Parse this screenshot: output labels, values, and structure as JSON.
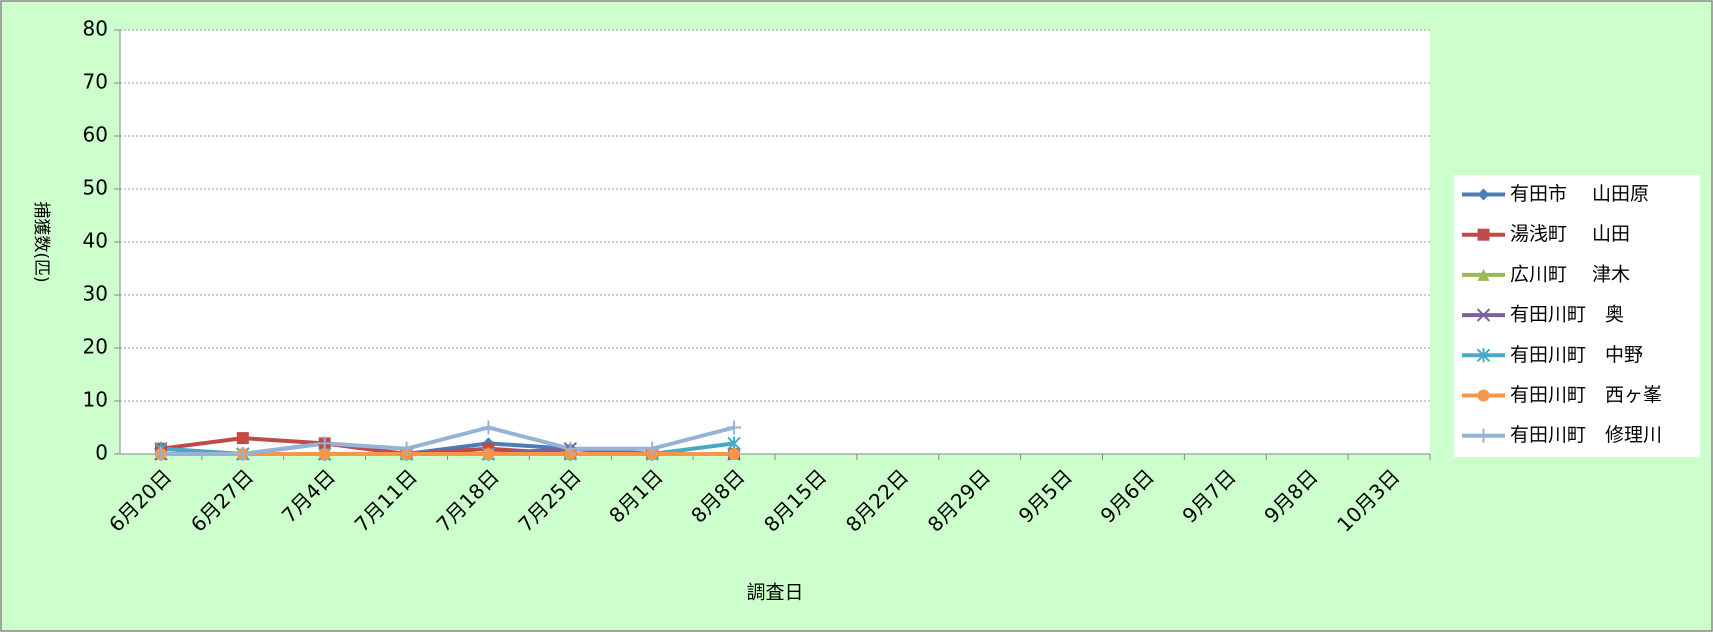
{
  "chart_data": {
    "type": "line",
    "x_label": "調査日",
    "y_label": "捕獲数(匹)",
    "categories": [
      "6月20日",
      "6月27日",
      "7月4日",
      "7月11日",
      "7月18日",
      "7月25日",
      "8月1日",
      "8月8日",
      "8月15日",
      "8月22日",
      "8月29日",
      "9月5日",
      "9月6日",
      "9月7日",
      "9月8日",
      "10月3日"
    ],
    "series": [
      {
        "name": "有田市　 山田原",
        "color": "#4a7ebb",
        "marker": "diamond",
        "values": [
          1,
          0,
          2,
          0,
          2,
          1,
          0,
          0,
          null,
          null,
          null,
          null,
          null,
          null,
          null,
          null
        ]
      },
      {
        "name": "湯浅町　 山田",
        "color": "#be4b48",
        "marker": "square",
        "values": [
          1,
          3,
          2,
          0,
          1,
          0,
          0,
          0,
          null,
          null,
          null,
          null,
          null,
          null,
          null,
          null
        ]
      },
      {
        "name": "広川町　 津木",
        "color": "#98b954",
        "marker": "triangle",
        "values": [
          0,
          0,
          0,
          0,
          0,
          0,
          0,
          0,
          null,
          null,
          null,
          null,
          null,
          null,
          null,
          null
        ]
      },
      {
        "name": "有田川町　奥",
        "color": "#7d60a0",
        "marker": "x",
        "values": [
          0,
          0,
          0,
          0,
          0,
          1,
          0,
          0,
          null,
          null,
          null,
          null,
          null,
          null,
          null,
          null
        ]
      },
      {
        "name": "有田川町　中野",
        "color": "#46aac5",
        "marker": "star",
        "values": [
          1,
          0,
          0,
          0,
          0,
          0,
          0,
          2,
          null,
          null,
          null,
          null,
          null,
          null,
          null,
          null
        ]
      },
      {
        "name": "有田川町　西ヶ峯",
        "color": "#f79646",
        "marker": "circle",
        "values": [
          0,
          0,
          0,
          0,
          0,
          0,
          0,
          0,
          null,
          null,
          null,
          null,
          null,
          null,
          null,
          null
        ]
      },
      {
        "name": "有田川町　修理川",
        "color": "#95b3d7",
        "marker": "plus",
        "values": [
          0,
          0,
          2,
          1,
          5,
          1,
          1,
          5,
          null,
          null,
          null,
          null,
          null,
          null,
          null,
          null
        ]
      }
    ],
    "ylim": [
      0,
      80
    ],
    "yticks": [
      0,
      10,
      20,
      30,
      40,
      50,
      60,
      70,
      80
    ],
    "grid": true,
    "legend": "right"
  }
}
